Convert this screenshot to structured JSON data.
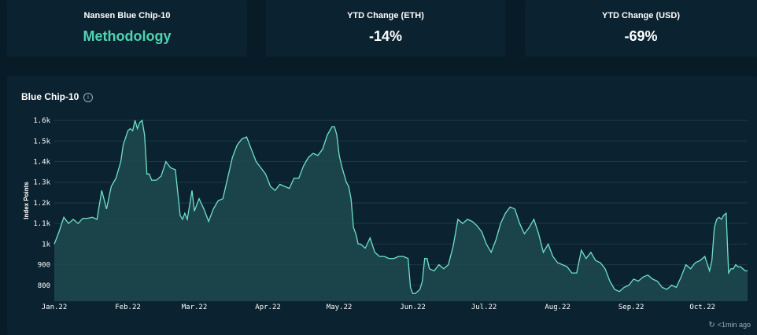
{
  "stats": [
    {
      "label": "Nansen Blue Chip-10",
      "value": "Methodology"
    },
    {
      "label": "YTD Change (ETH)",
      "value": "-14%"
    },
    {
      "label": "YTD Change (USD)",
      "value": "-69%"
    }
  ],
  "chart": {
    "title": "Blue Chip-10",
    "info_icon": "info-circle-icon",
    "refresh_icon": "refresh-icon",
    "refresh_text": "<1min ago"
  },
  "colors": {
    "background": "#071c26",
    "card": "#0b2330",
    "accent": "#4fd3b0",
    "line": "#6fe0c8",
    "area": "#1f4a4f"
  },
  "chart_data": {
    "type": "area",
    "ylabel": "Index Points",
    "xlabel": "",
    "ylim": [
      700,
      1650
    ],
    "y_ticks": [
      "800",
      "900",
      "1k",
      "1.1k",
      "1.2k",
      "1.3k",
      "1.4k",
      "1.5k",
      "1.6k"
    ],
    "y_tick_values": [
      800,
      900,
      1000,
      1100,
      1200,
      1300,
      1400,
      1500,
      1600
    ],
    "x_ticks": [
      "Jan.22",
      "Feb.22",
      "Mar.22",
      "Apr.22",
      "May.22",
      "Jun.22",
      "Jul.22",
      "Aug.22",
      "Sep.22",
      "Oct.22"
    ],
    "x_tick_days": [
      0,
      31,
      59,
      90,
      120,
      151,
      181,
      212,
      243,
      273
    ],
    "grid": true,
    "legend": "none",
    "series": [
      {
        "x": [
          0,
          2,
          4,
          6,
          8,
          10,
          12,
          14,
          16,
          18,
          20,
          22,
          24,
          26,
          28,
          29,
          31,
          32,
          33,
          34,
          35,
          36,
          37,
          38,
          39,
          40,
          41,
          43,
          45,
          47,
          49,
          51,
          53,
          54,
          55,
          56,
          57,
          58,
          59,
          61,
          63,
          65,
          67,
          69,
          71,
          73,
          75,
          77,
          79,
          81,
          83,
          85,
          87,
          89,
          91,
          93,
          95,
          97,
          99,
          101,
          103,
          105,
          107,
          109,
          111,
          113,
          115,
          117,
          118,
          119,
          120,
          121,
          122,
          123,
          124,
          125,
          126,
          127,
          128,
          129,
          131,
          133,
          135,
          137,
          139,
          141,
          143,
          145,
          147,
          149,
          150,
          151,
          152,
          153,
          154,
          155,
          156,
          157,
          158,
          160,
          162,
          164,
          166,
          168,
          170,
          172,
          174,
          176,
          178,
          180,
          182,
          184,
          186,
          188,
          190,
          192,
          194,
          196,
          198,
          200,
          202,
          204,
          206,
          208,
          210,
          212,
          214,
          216,
          218,
          220,
          222,
          224,
          226,
          228,
          230,
          232,
          234,
          236,
          238,
          240,
          242,
          244,
          246,
          248,
          250,
          252,
          254,
          256,
          258,
          260,
          262,
          264,
          266,
          268,
          270,
          272,
          274,
          276,
          277,
          278,
          279,
          280,
          281,
          282,
          283,
          284,
          285,
          286,
          287,
          288,
          289,
          290,
          291,
          292
        ],
        "y": [
          1000,
          1060,
          1130,
          1100,
          1120,
          1100,
          1125,
          1125,
          1130,
          1120,
          1260,
          1170,
          1280,
          1320,
          1400,
          1480,
          1550,
          1560,
          1550,
          1600,
          1560,
          1590,
          1600,
          1530,
          1340,
          1340,
          1310,
          1310,
          1330,
          1400,
          1370,
          1360,
          1140,
          1120,
          1150,
          1120,
          1190,
          1260,
          1160,
          1220,
          1170,
          1110,
          1170,
          1210,
          1220,
          1320,
          1420,
          1480,
          1510,
          1520,
          1460,
          1400,
          1370,
          1340,
          1280,
          1260,
          1290,
          1280,
          1270,
          1320,
          1320,
          1380,
          1420,
          1440,
          1430,
          1460,
          1530,
          1570,
          1570,
          1530,
          1430,
          1380,
          1340,
          1300,
          1280,
          1220,
          1080,
          1050,
          1000,
          1000,
          980,
          1030,
          960,
          940,
          940,
          930,
          930,
          940,
          940,
          930,
          790,
          760,
          760,
          770,
          780,
          820,
          930,
          930,
          880,
          870,
          900,
          880,
          900,
          990,
          1120,
          1100,
          1120,
          1110,
          1090,
          1060,
          1000,
          960,
          1020,
          1100,
          1150,
          1180,
          1170,
          1100,
          1050,
          1080,
          1120,
          1050,
          960,
          1000,
          940,
          910,
          900,
          890,
          860,
          860,
          970,
          930,
          960,
          920,
          910,
          880,
          820,
          780,
          770,
          790,
          800,
          830,
          820,
          840,
          850,
          830,
          820,
          790,
          780,
          800,
          790,
          840,
          900,
          880,
          910,
          920,
          940,
          870,
          920,
          1080,
          1120,
          1130,
          1120,
          1140,
          1150,
          860,
          880,
          880,
          900,
          890,
          890,
          880,
          870,
          870
        ]
      }
    ]
  }
}
